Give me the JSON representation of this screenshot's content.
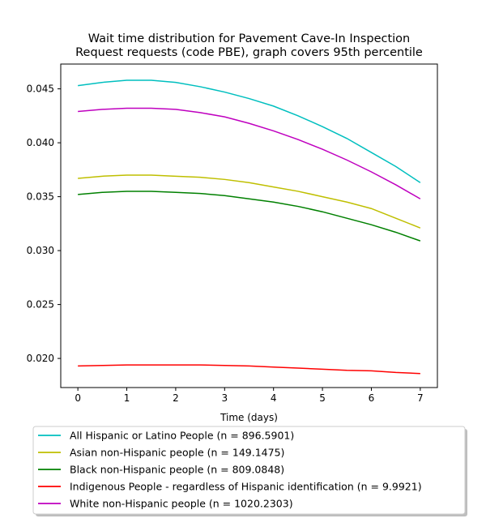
{
  "chart_data": {
    "type": "line",
    "title_lines": [
      "Wait time distribution  for Pavement Cave-In Inspection",
      "Request  requests (code PBE), graph covers 95th percentile"
    ],
    "xlabel": "Time (days)",
    "ylabel": "",
    "xlim": [
      -0.35,
      7.35
    ],
    "ylim": [
      0.0173,
      0.0473
    ],
    "xticks": [
      0,
      1,
      2,
      3,
      4,
      5,
      6,
      7
    ],
    "yticks": [
      0.02,
      0.025,
      0.03,
      0.035,
      0.04,
      0.045
    ],
    "ytick_labels": [
      "0.020",
      "0.025",
      "0.030",
      "0.035",
      "0.040",
      "0.045"
    ],
    "grid": false,
    "legend_position": "below",
    "x": [
      0,
      0.5,
      1,
      1.5,
      2,
      2.5,
      3,
      3.5,
      4,
      4.5,
      5,
      5.5,
      6,
      6.5,
      7
    ],
    "series": [
      {
        "name": "All Hispanic or Latino People (n = 896.5901)",
        "color": "#00bfbf",
        "values": [
          0.0453,
          0.0456,
          0.0458,
          0.0458,
          0.0456,
          0.0452,
          0.0447,
          0.0441,
          0.0434,
          0.0425,
          0.0415,
          0.0404,
          0.0391,
          0.0378,
          0.0363
        ]
      },
      {
        "name": "Asian non-Hispanic people (n = 149.1475)",
        "color": "#bfbf00",
        "values": [
          0.0367,
          0.0369,
          0.037,
          0.037,
          0.0369,
          0.0368,
          0.0366,
          0.0363,
          0.0359,
          0.0355,
          0.035,
          0.0345,
          0.0339,
          0.033,
          0.0321
        ]
      },
      {
        "name": "Black non-Hispanic people (n = 809.0848)",
        "color": "#008000",
        "values": [
          0.0352,
          0.0354,
          0.0355,
          0.0355,
          0.0354,
          0.0353,
          0.0351,
          0.0348,
          0.0345,
          0.0341,
          0.0336,
          0.033,
          0.0324,
          0.0317,
          0.0309
        ]
      },
      {
        "name": "Indigenous People - regardless of Hispanic identification (n = 9.9921)",
        "color": "#ff0000",
        "values": [
          0.0193,
          0.01935,
          0.0194,
          0.0194,
          0.0194,
          0.0194,
          0.01935,
          0.0193,
          0.0192,
          0.0191,
          0.019,
          0.0189,
          0.01885,
          0.0187,
          0.0186
        ]
      },
      {
        "name": "White non-Hispanic people (n = 1020.2303)",
        "color": "#bf00bf",
        "values": [
          0.0429,
          0.0431,
          0.0432,
          0.0432,
          0.0431,
          0.0428,
          0.0424,
          0.0418,
          0.0411,
          0.0403,
          0.0394,
          0.0384,
          0.0373,
          0.0361,
          0.0348
        ]
      }
    ]
  }
}
